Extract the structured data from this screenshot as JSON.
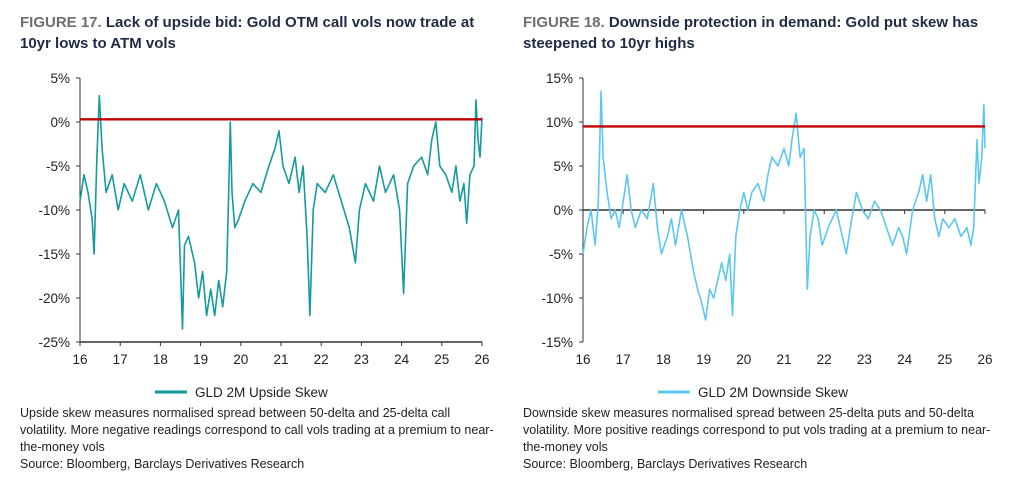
{
  "figures": [
    {
      "label": "FIGURE 17.",
      "title": "Lack of upside bid: Gold OTM call vols now trade at 10yr lows to ATM vols",
      "note": "Upside skew measures normalised spread between 50-delta and 25-delta call volatility. More negative readings correspond to call vols trading at a premium to near-the-money vols",
      "source": "Source: Bloomberg, Barclays Derivatives Research"
    },
    {
      "label": "FIGURE 18.",
      "title": "Downside protection in demand: Gold put skew has steepened to 10yr highs",
      "note": "Downside skew measures normalised spread between 25-delta puts and 50-delta volatility. More positive readings correspond to put vols trading at a premium to near-the-money vols",
      "source": "Source: Bloomberg, Barclays Derivatives Research"
    }
  ],
  "chart_data": [
    {
      "type": "line",
      "title": "",
      "xlabel": "",
      "ylabel": "",
      "x_ticks": [
        "16",
        "17",
        "18",
        "19",
        "20",
        "21",
        "22",
        "23",
        "24",
        "25",
        "26"
      ],
      "y_ticks": [
        "5%",
        "0%",
        "-5%",
        "-10%",
        "-15%",
        "-20%",
        "-25%"
      ],
      "xlim": [
        16,
        26
      ],
      "ylim": [
        -25,
        5
      ],
      "legend_position": "bottom",
      "reference_line": {
        "y": 0.3,
        "color": "#c00000"
      },
      "series": [
        {
          "name": "GLD 2M Upside Skew",
          "color": "#159b9b",
          "points": [
            [
              16.0,
              -9
            ],
            [
              16.1,
              -6
            ],
            [
              16.2,
              -8
            ],
            [
              16.3,
              -11
            ],
            [
              16.35,
              -15
            ],
            [
              16.42,
              -4
            ],
            [
              16.48,
              3
            ],
            [
              16.55,
              -3
            ],
            [
              16.65,
              -8
            ],
            [
              16.8,
              -6
            ],
            [
              16.95,
              -10
            ],
            [
              17.1,
              -7
            ],
            [
              17.3,
              -9
            ],
            [
              17.5,
              -6
            ],
            [
              17.7,
              -10
            ],
            [
              17.9,
              -7
            ],
            [
              18.1,
              -9
            ],
            [
              18.3,
              -12
            ],
            [
              18.45,
              -10
            ],
            [
              18.55,
              -23.5
            ],
            [
              18.6,
              -14
            ],
            [
              18.7,
              -13
            ],
            [
              18.85,
              -16
            ],
            [
              18.95,
              -20
            ],
            [
              19.05,
              -17
            ],
            [
              19.15,
              -22
            ],
            [
              19.25,
              -19
            ],
            [
              19.35,
              -22
            ],
            [
              19.45,
              -18
            ],
            [
              19.55,
              -21
            ],
            [
              19.65,
              -17
            ],
            [
              19.7,
              -8
            ],
            [
              19.74,
              0
            ],
            [
              19.78,
              -8
            ],
            [
              19.85,
              -12
            ],
            [
              19.95,
              -11
            ],
            [
              20.1,
              -9
            ],
            [
              20.3,
              -7
            ],
            [
              20.5,
              -8
            ],
            [
              20.7,
              -5
            ],
            [
              20.85,
              -3
            ],
            [
              20.95,
              -1
            ],
            [
              21.05,
              -5
            ],
            [
              21.2,
              -7
            ],
            [
              21.35,
              -4
            ],
            [
              21.45,
              -8
            ],
            [
              21.55,
              -5
            ],
            [
              21.65,
              -13
            ],
            [
              21.72,
              -22
            ],
            [
              21.8,
              -10
            ],
            [
              21.9,
              -7
            ],
            [
              22.1,
              -8
            ],
            [
              22.3,
              -6
            ],
            [
              22.5,
              -9
            ],
            [
              22.7,
              -12
            ],
            [
              22.85,
              -16
            ],
            [
              22.95,
              -10
            ],
            [
              23.1,
              -7
            ],
            [
              23.3,
              -9
            ],
            [
              23.45,
              -5
            ],
            [
              23.6,
              -8
            ],
            [
              23.8,
              -6
            ],
            [
              23.95,
              -10
            ],
            [
              24.05,
              -19.5
            ],
            [
              24.15,
              -7
            ],
            [
              24.3,
              -5
            ],
            [
              24.5,
              -4
            ],
            [
              24.65,
              -6
            ],
            [
              24.75,
              -2
            ],
            [
              24.85,
              0
            ],
            [
              24.95,
              -5
            ],
            [
              25.1,
              -6
            ],
            [
              25.25,
              -8
            ],
            [
              25.35,
              -5
            ],
            [
              25.45,
              -9
            ],
            [
              25.55,
              -7
            ],
            [
              25.62,
              -11.5
            ],
            [
              25.7,
              -6
            ],
            [
              25.8,
              -5
            ],
            [
              25.85,
              2.5
            ],
            [
              25.9,
              -2
            ],
            [
              25.95,
              -4
            ],
            [
              26.0,
              0.5
            ]
          ]
        }
      ]
    },
    {
      "type": "line",
      "title": "",
      "xlabel": "",
      "ylabel": "",
      "x_ticks": [
        "16",
        "17",
        "18",
        "19",
        "20",
        "21",
        "22",
        "23",
        "24",
        "25",
        "26"
      ],
      "y_ticks": [
        "15%",
        "10%",
        "5%",
        "0%",
        "-5%",
        "-10%",
        "-15%"
      ],
      "xlim": [
        16,
        26
      ],
      "ylim": [
        -15,
        15
      ],
      "legend_position": "bottom",
      "reference_line": {
        "y": 9.5,
        "color": "#c00000"
      },
      "series": [
        {
          "name": "GLD 2M Downside Skew",
          "color": "#5bc8ee",
          "points": [
            [
              16.0,
              -5
            ],
            [
              16.1,
              -2
            ],
            [
              16.2,
              0
            ],
            [
              16.3,
              -4
            ],
            [
              16.38,
              1
            ],
            [
              16.45,
              13.5
            ],
            [
              16.5,
              6
            ],
            [
              16.6,
              2
            ],
            [
              16.7,
              -1
            ],
            [
              16.8,
              0
            ],
            [
              16.9,
              -2
            ],
            [
              17.0,
              1
            ],
            [
              17.1,
              4
            ],
            [
              17.2,
              0
            ],
            [
              17.3,
              -2
            ],
            [
              17.45,
              0
            ],
            [
              17.6,
              -1
            ],
            [
              17.75,
              3
            ],
            [
              17.85,
              -2
            ],
            [
              17.95,
              -5
            ],
            [
              18.1,
              -3
            ],
            [
              18.2,
              -1
            ],
            [
              18.3,
              -4
            ],
            [
              18.45,
              0
            ],
            [
              18.6,
              -3
            ],
            [
              18.75,
              -7
            ],
            [
              18.85,
              -9
            ],
            [
              18.95,
              -10.5
            ],
            [
              19.05,
              -12.5
            ],
            [
              19.15,
              -9
            ],
            [
              19.25,
              -10
            ],
            [
              19.35,
              -8
            ],
            [
              19.45,
              -6
            ],
            [
              19.55,
              -8
            ],
            [
              19.65,
              -5
            ],
            [
              19.72,
              -12
            ],
            [
              19.8,
              -3
            ],
            [
              19.9,
              0
            ],
            [
              20.0,
              2
            ],
            [
              20.1,
              0
            ],
            [
              20.2,
              2
            ],
            [
              20.35,
              3
            ],
            [
              20.5,
              1
            ],
            [
              20.6,
              4
            ],
            [
              20.7,
              6
            ],
            [
              20.85,
              5
            ],
            [
              21.0,
              7
            ],
            [
              21.12,
              5
            ],
            [
              21.2,
              8
            ],
            [
              21.3,
              11
            ],
            [
              21.4,
              6
            ],
            [
              21.5,
              7
            ],
            [
              21.58,
              -9
            ],
            [
              21.65,
              -3
            ],
            [
              21.75,
              0
            ],
            [
              21.85,
              -1
            ],
            [
              21.95,
              -4
            ],
            [
              22.1,
              -2
            ],
            [
              22.3,
              0
            ],
            [
              22.45,
              -3
            ],
            [
              22.55,
              -5
            ],
            [
              22.65,
              -2
            ],
            [
              22.8,
              2
            ],
            [
              22.95,
              0
            ],
            [
              23.1,
              -1
            ],
            [
              23.25,
              1
            ],
            [
              23.4,
              0
            ],
            [
              23.55,
              -2
            ],
            [
              23.7,
              -4
            ],
            [
              23.85,
              -2
            ],
            [
              23.95,
              -3
            ],
            [
              24.05,
              -5
            ],
            [
              24.2,
              0
            ],
            [
              24.35,
              2
            ],
            [
              24.45,
              4
            ],
            [
              24.55,
              1
            ],
            [
              24.65,
              4
            ],
            [
              24.75,
              -1
            ],
            [
              24.85,
              -3
            ],
            [
              24.95,
              -1
            ],
            [
              25.1,
              -2
            ],
            [
              25.25,
              -1
            ],
            [
              25.4,
              -3
            ],
            [
              25.55,
              -2
            ],
            [
              25.65,
              -4
            ],
            [
              25.72,
              -2
            ],
            [
              25.8,
              8
            ],
            [
              25.85,
              3
            ],
            [
              25.92,
              6
            ],
            [
              25.97,
              12
            ],
            [
              26.0,
              7
            ]
          ]
        }
      ]
    }
  ]
}
